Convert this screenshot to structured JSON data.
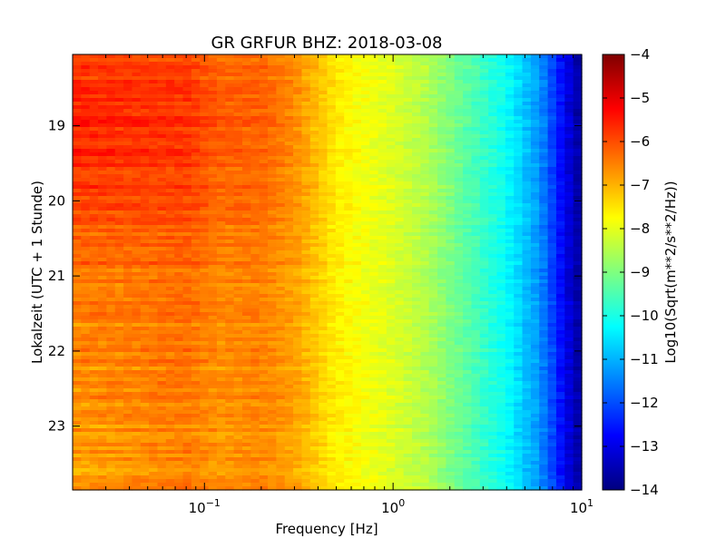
{
  "chart_data": {
    "type": "heatmap",
    "title": "GR GRFUR BHZ: 2018-03-08",
    "xlabel": "Frequency [Hz]",
    "ylabel": "Lokalzeit (UTC + 1 Stunde)",
    "x_scale": "log",
    "xlim": [
      0.02,
      10
    ],
    "x_ticks": [
      {
        "value": 0.1,
        "base": "10",
        "exp": "−1"
      },
      {
        "value": 1,
        "base": "10",
        "exp": "0"
      },
      {
        "value": 10,
        "base": "10",
        "exp": "1"
      }
    ],
    "ylim": [
      18.05,
      23.85
    ],
    "y_inverted": true,
    "y_ticks": [
      19,
      20,
      21,
      22,
      23
    ],
    "colorbar": {
      "label": "Log10(Sqrt(m**2/s**2/Hz))",
      "range": [
        -14,
        -4
      ],
      "ticks": [
        -4,
        -5,
        -6,
        -7,
        -8,
        -9,
        -10,
        -11,
        -12,
        -13,
        -14
      ],
      "tick_labels": [
        "−4",
        "−5",
        "−6",
        "−7",
        "−8",
        "−9",
        "−10",
        "−11",
        "−12",
        "−13",
        "−14"
      ],
      "colormap": "jet"
    },
    "frequency_profile": [
      {
        "frequency": 0.02,
        "value": -6.5
      },
      {
        "frequency": 0.05,
        "value": -6.4
      },
      {
        "frequency": 0.08,
        "value": -6.3
      },
      {
        "frequency": 0.12,
        "value": -6.6
      },
      {
        "frequency": 0.2,
        "value": -6.5
      },
      {
        "frequency": 0.3,
        "value": -6.8
      },
      {
        "frequency": 0.5,
        "value": -7.6
      },
      {
        "frequency": 1.0,
        "value": -8.1
      },
      {
        "frequency": 1.5,
        "value": -8.5
      },
      {
        "frequency": 2.5,
        "value": -9.4
      },
      {
        "frequency": 4.0,
        "value": -10.2
      },
      {
        "frequency": 6.0,
        "value": -11.3
      },
      {
        "frequency": 8.0,
        "value": -12.8
      },
      {
        "frequency": 10.0,
        "value": -13.8
      }
    ],
    "time_modulation": [
      {
        "hour": 18.05,
        "offset": 0.5
      },
      {
        "hour": 18.8,
        "offset": 1.0
      },
      {
        "hour": 19.6,
        "offset": 0.8
      },
      {
        "hour": 20.5,
        "offset": 0.3
      },
      {
        "hour": 21.5,
        "offset": 0.0
      },
      {
        "hour": 22.5,
        "offset": -0.2
      },
      {
        "hour": 23.85,
        "offset": -0.4
      }
    ]
  }
}
